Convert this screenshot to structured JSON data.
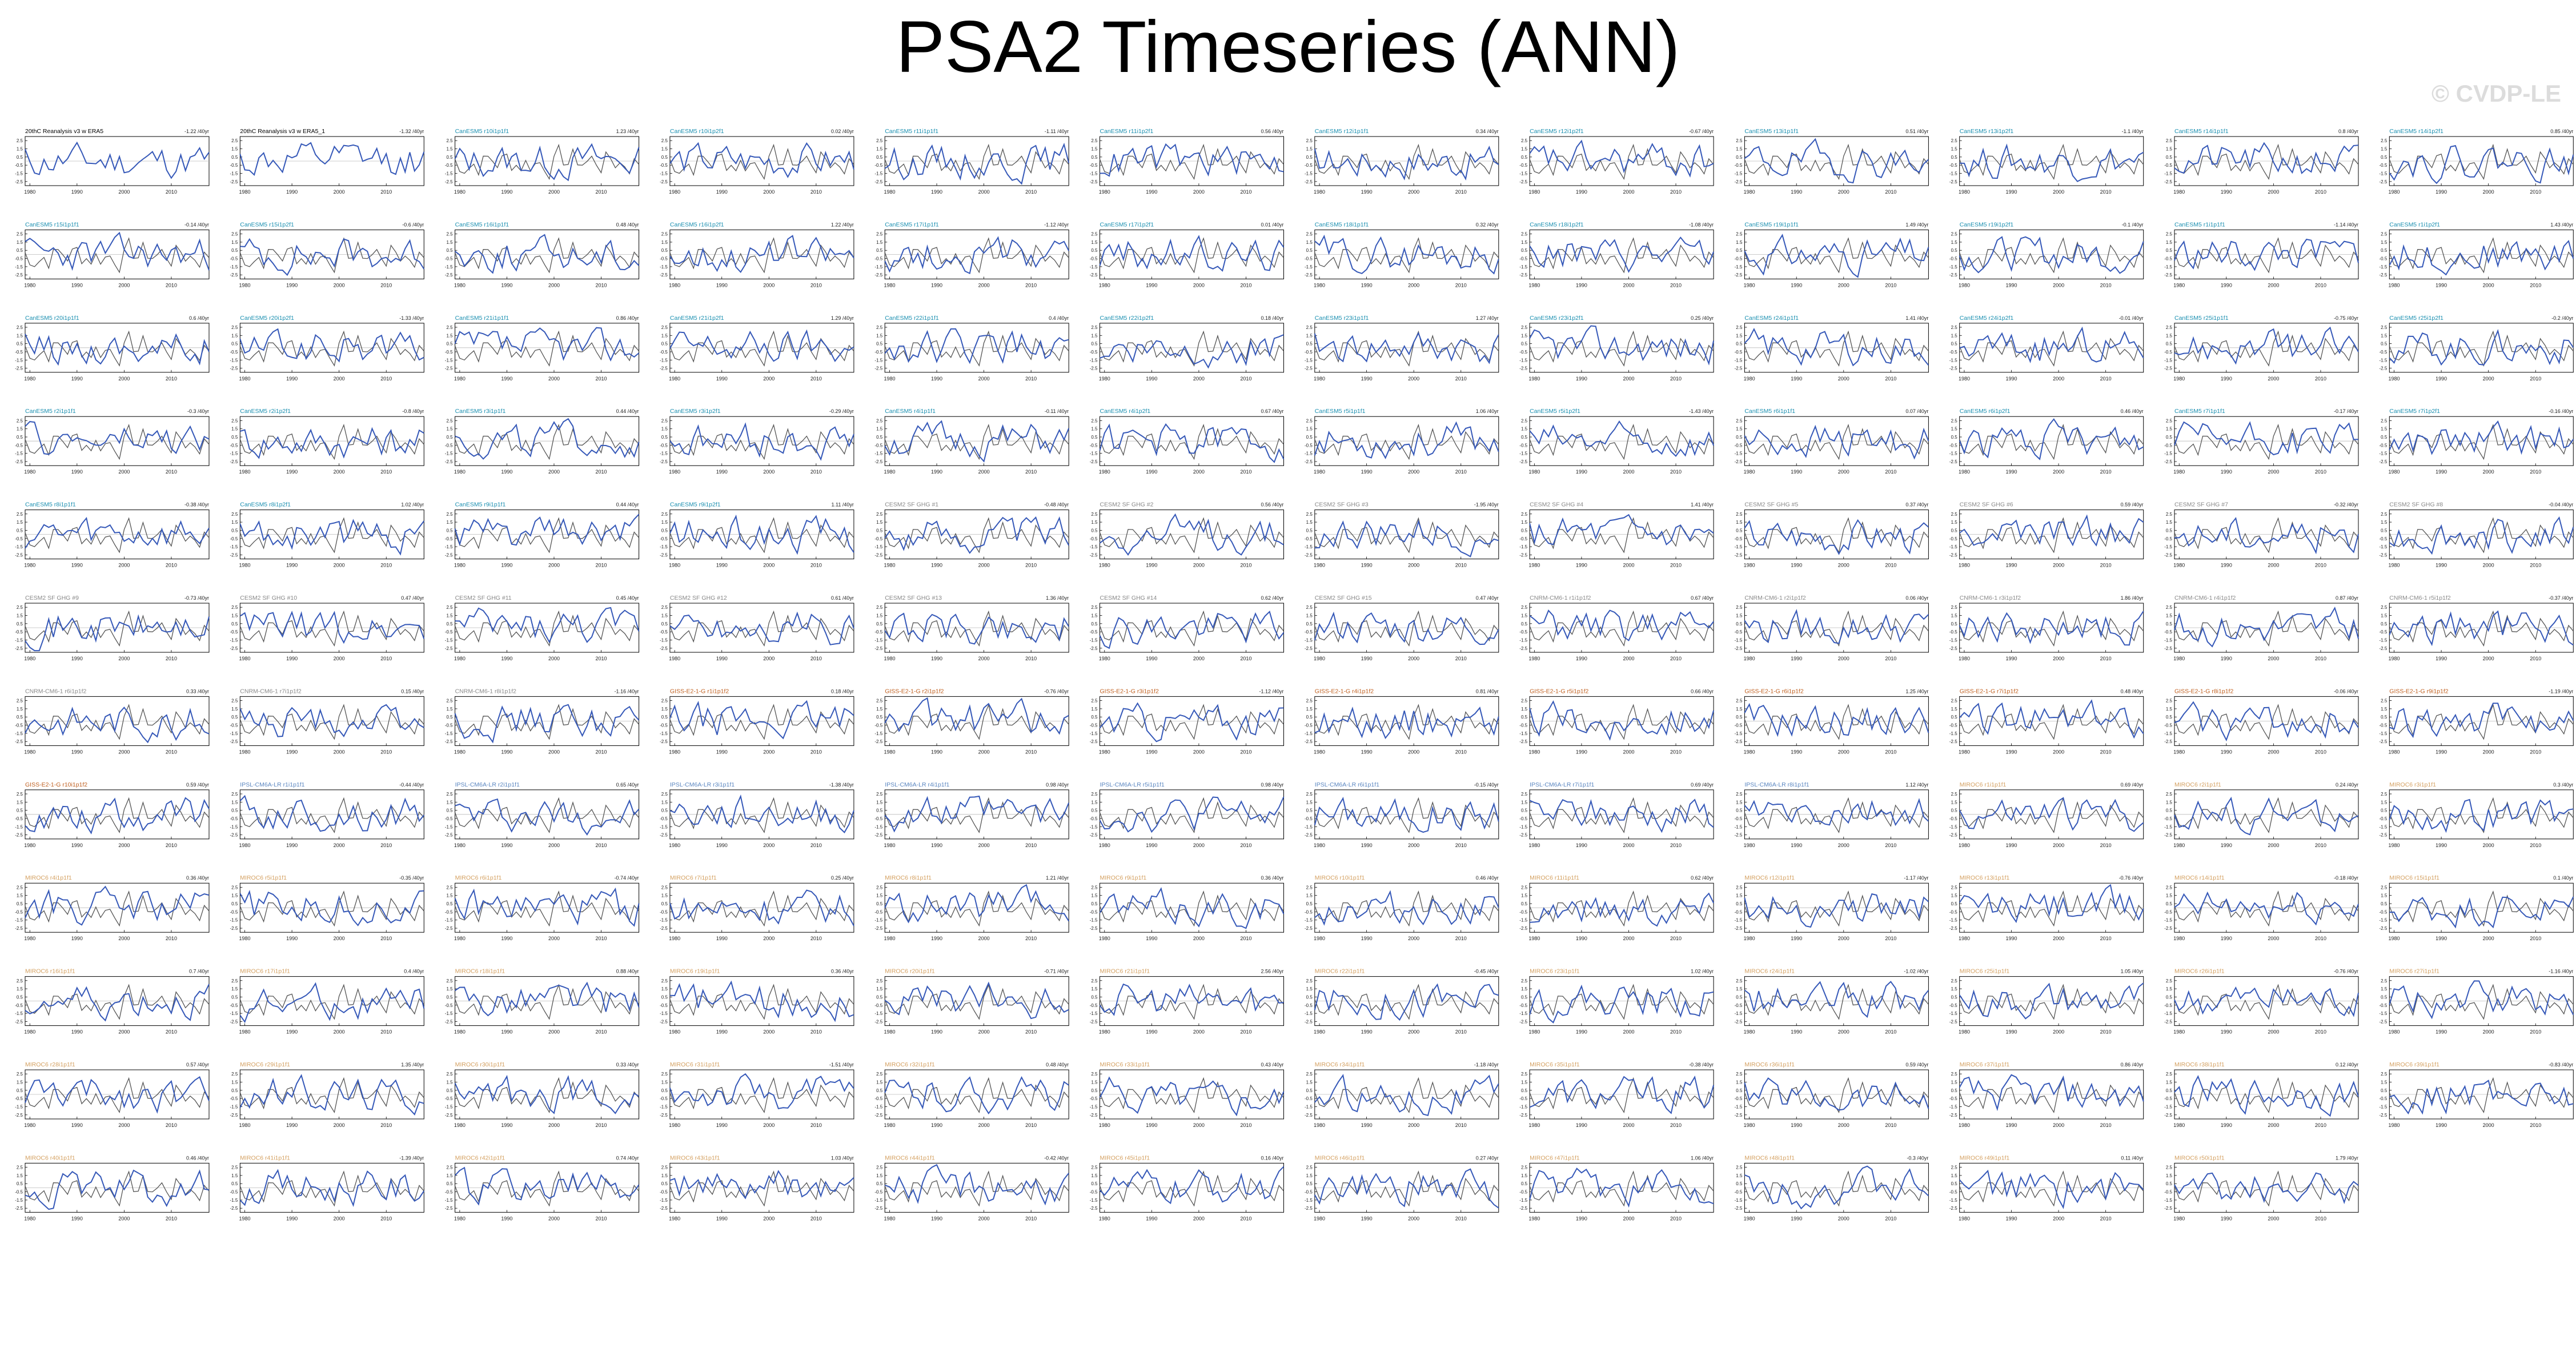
{
  "page": {
    "title": "PSA2 Timeseries (ANN)",
    "watermark": "© CVDP-LE"
  },
  "colors": {
    "model_line": "#3558b8",
    "obs_line": "#555555",
    "label_obs": "#000000",
    "label_cesm2": "#1a8fb0",
    "label_cesm_sf": "#888888",
    "label_cnrm": "#8a8a8a",
    "label_giss": "#c06020",
    "label_ipsl": "#5a86c0",
    "label_miroc": "#d4a060"
  },
  "chart_data": {
    "type": "line",
    "layout": "small-multiples",
    "x_ticks": [
      "1980",
      "1990",
      "2000",
      "2010"
    ],
    "y_ticks": [
      "2.5",
      "1.5",
      "0.5",
      "-0.5",
      "-1.5",
      "-2.5"
    ],
    "xlim": [
      1979,
      2018
    ],
    "ylim": [
      -3,
      3
    ],
    "panels": [
      {
        "label": "20thC Reanalysis v3 w ERA5",
        "trend": "-1.22 /40yr",
        "group": "obs"
      },
      {
        "label": "20thC Reanalysis v3 w ERA5_1",
        "trend": "-1.32 /40yr",
        "group": "obs"
      },
      {
        "label": "CanESM5 r10i1p1f1",
        "trend": "1.23 /40yr",
        "group": "cesm2"
      },
      {
        "label": "CanESM5 r10i1p2f1",
        "trend": "0.02 /40yr",
        "group": "cesm2"
      },
      {
        "label": "CanESM5 r11i1p1f1",
        "trend": "-1.11 /40yr",
        "group": "cesm2"
      },
      {
        "label": "CanESM5 r11i1p2f1",
        "trend": "0.56 /40yr",
        "group": "cesm2"
      },
      {
        "label": "CanESM5 r12i1p1f1",
        "trend": "0.34 /40yr",
        "group": "cesm2"
      },
      {
        "label": "CanESM5 r12i1p2f1",
        "trend": "-0.67 /40yr",
        "group": "cesm2"
      },
      {
        "label": "CanESM5 r13i1p1f1",
        "trend": "0.51 /40yr",
        "group": "cesm2"
      },
      {
        "label": "CanESM5 r13i1p2f1",
        "trend": "-1.1 /40yr",
        "group": "cesm2"
      },
      {
        "label": "CanESM5 r14i1p1f1",
        "trend": "0.8 /40yr",
        "group": "cesm2"
      },
      {
        "label": "CanESM5 r14i1p2f1",
        "trend": "0.85 /40yr",
        "group": "cesm2"
      },
      {
        "label": "CanESM5 r15i1p1f1",
        "trend": "-0.14 /40yr",
        "group": "cesm2"
      },
      {
        "label": "CanESM5 r15i1p2f1",
        "trend": "-0.6 /40yr",
        "group": "cesm2"
      },
      {
        "label": "CanESM5 r16i1p1f1",
        "trend": "0.48 /40yr",
        "group": "cesm2"
      },
      {
        "label": "CanESM5 r16i1p2f1",
        "trend": "1.22 /40yr",
        "group": "cesm2"
      },
      {
        "label": "CanESM5 r17i1p1f1",
        "trend": "-1.12 /40yr",
        "group": "cesm2"
      },
      {
        "label": "CanESM5 r17i1p2f1",
        "trend": "0.01 /40yr",
        "group": "cesm2"
      },
      {
        "label": "CanESM5 r18i1p1f1",
        "trend": "0.32 /40yr",
        "group": "cesm2"
      },
      {
        "label": "CanESM5 r18i1p2f1",
        "trend": "-1.08 /40yr",
        "group": "cesm2"
      },
      {
        "label": "CanESM5 r19i1p1f1",
        "trend": "1.49 /40yr",
        "group": "cesm2"
      },
      {
        "label": "CanESM5 r19i1p2f1",
        "trend": "-0.1 /40yr",
        "group": "cesm2"
      },
      {
        "label": "CanESM5 r1i1p1f1",
        "trend": "-1.14 /40yr",
        "group": "cesm2"
      },
      {
        "label": "CanESM5 r1i1p2f1",
        "trend": "1.43 /40yr",
        "group": "cesm2"
      },
      {
        "label": "CanESM5 r20i1p1f1",
        "trend": "0.6 /40yr",
        "group": "cesm2"
      },
      {
        "label": "CanESM5 r20i1p2f1",
        "trend": "-1.33 /40yr",
        "group": "cesm2"
      },
      {
        "label": "CanESM5 r21i1p1f1",
        "trend": "0.86 /40yr",
        "group": "cesm2"
      },
      {
        "label": "CanESM5 r21i1p2f1",
        "trend": "1.29 /40yr",
        "group": "cesm2"
      },
      {
        "label": "CanESM5 r22i1p1f1",
        "trend": "0.4 /40yr",
        "group": "cesm2"
      },
      {
        "label": "CanESM5 r22i1p2f1",
        "trend": "0.18 /40yr",
        "group": "cesm2"
      },
      {
        "label": "CanESM5 r23i1p1f1",
        "trend": "1.27 /40yr",
        "group": "cesm2"
      },
      {
        "label": "CanESM5 r23i1p2f1",
        "trend": "0.25 /40yr",
        "group": "cesm2"
      },
      {
        "label": "CanESM5 r24i1p1f1",
        "trend": "1.41 /40yr",
        "group": "cesm2"
      },
      {
        "label": "CanESM5 r24i1p2f1",
        "trend": "-0.01 /40yr",
        "group": "cesm2"
      },
      {
        "label": "CanESM5 r25i1p1f1",
        "trend": "-0.75 /40yr",
        "group": "cesm2"
      },
      {
        "label": "CanESM5 r25i1p2f1",
        "trend": "-0.2 /40yr",
        "group": "cesm2"
      },
      {
        "label": "CanESM5 r2i1p1f1",
        "trend": "-0.3 /40yr",
        "group": "cesm2"
      },
      {
        "label": "CanESM5 r2i1p2f1",
        "trend": "-0.8 /40yr",
        "group": "cesm2"
      },
      {
        "label": "CanESM5 r3i1p1f1",
        "trend": "0.44 /40yr",
        "group": "cesm2"
      },
      {
        "label": "CanESM5 r3i1p2f1",
        "trend": "-0.29 /40yr",
        "group": "cesm2"
      },
      {
        "label": "CanESM5 r4i1p1f1",
        "trend": "-0.11 /40yr",
        "group": "cesm2"
      },
      {
        "label": "CanESM5 r4i1p2f1",
        "trend": "0.67 /40yr",
        "group": "cesm2"
      },
      {
        "label": "CanESM5 r5i1p1f1",
        "trend": "1.06 /40yr",
        "group": "cesm2"
      },
      {
        "label": "CanESM5 r5i1p2f1",
        "trend": "-1.43 /40yr",
        "group": "cesm2"
      },
      {
        "label": "CanESM5 r6i1p1f1",
        "trend": "0.07 /40yr",
        "group": "cesm2"
      },
      {
        "label": "CanESM5 r6i1p2f1",
        "trend": "0.46 /40yr",
        "group": "cesm2"
      },
      {
        "label": "CanESM5 r7i1p1f1",
        "trend": "-0.17 /40yr",
        "group": "cesm2"
      },
      {
        "label": "CanESM5 r7i1p2f1",
        "trend": "-0.16 /40yr",
        "group": "cesm2"
      },
      {
        "label": "CanESM5 r8i1p1f1",
        "trend": "-0.38 /40yr",
        "group": "cesm2"
      },
      {
        "label": "CanESM5 r8i1p2f1",
        "trend": "1.02 /40yr",
        "group": "cesm2"
      },
      {
        "label": "CanESM5 r9i1p1f1",
        "trend": "0.44 /40yr",
        "group": "cesm2"
      },
      {
        "label": "CanESM5 r9i1p2f1",
        "trend": "1.11 /40yr",
        "group": "cesm2"
      },
      {
        "label": "CESM2 SF GHG #1",
        "trend": "-0.48 /40yr",
        "group": "cesm_sf"
      },
      {
        "label": "CESM2 SF GHG #2",
        "trend": "0.56 /40yr",
        "group": "cesm_sf"
      },
      {
        "label": "CESM2 SF GHG #3",
        "trend": "-1.95 /40yr",
        "group": "cesm_sf"
      },
      {
        "label": "CESM2 SF GHG #4",
        "trend": "1.41 /40yr",
        "group": "cesm_sf"
      },
      {
        "label": "CESM2 SF GHG #5",
        "trend": "0.37 /40yr",
        "group": "cesm_sf"
      },
      {
        "label": "CESM2 SF GHG #6",
        "trend": "0.59 /40yr",
        "group": "cesm_sf"
      },
      {
        "label": "CESM2 SF GHG #7",
        "trend": "-0.32 /40yr",
        "group": "cesm_sf"
      },
      {
        "label": "CESM2 SF GHG #8",
        "trend": "-0.04 /40yr",
        "group": "cesm_sf"
      },
      {
        "label": "CESM2 SF GHG #9",
        "trend": "-0.73 /40yr",
        "group": "cesm_sf"
      },
      {
        "label": "CESM2 SF GHG #10",
        "trend": "0.47 /40yr",
        "group": "cesm_sf"
      },
      {
        "label": "CESM2 SF GHG #11",
        "trend": "0.45 /40yr",
        "group": "cesm_sf"
      },
      {
        "label": "CESM2 SF GHG #12",
        "trend": "0.61 /40yr",
        "group": "cesm_sf"
      },
      {
        "label": "CESM2 SF GHG #13",
        "trend": "1.36 /40yr",
        "group": "cesm_sf"
      },
      {
        "label": "CESM2 SF GHG #14",
        "trend": "0.62 /40yr",
        "group": "cesm_sf"
      },
      {
        "label": "CESM2 SF GHG #15",
        "trend": "0.47 /40yr",
        "group": "cesm_sf"
      },
      {
        "label": "CNRM-CM6-1 r1i1p1f2",
        "trend": "0.67 /40yr",
        "group": "cnrm"
      },
      {
        "label": "CNRM-CM6-1 r2i1p1f2",
        "trend": "0.06 /40yr",
        "group": "cnrm"
      },
      {
        "label": "CNRM-CM6-1 r3i1p1f2",
        "trend": "1.86 /40yr",
        "group": "cnrm"
      },
      {
        "label": "CNRM-CM6-1 r4i1p1f2",
        "trend": "0.87 /40yr",
        "group": "cnrm"
      },
      {
        "label": "CNRM-CM6-1 r5i1p1f2",
        "trend": "-0.37 /40yr",
        "group": "cnrm"
      },
      {
        "label": "CNRM-CM6-1 r6i1p1f2",
        "trend": "0.33 /40yr",
        "group": "cnrm"
      },
      {
        "label": "CNRM-CM6-1 r7i1p1f2",
        "trend": "0.15 /40yr",
        "group": "cnrm"
      },
      {
        "label": "CNRM-CM6-1 r8i1p1f2",
        "trend": "-1.16 /40yr",
        "group": "cnrm"
      },
      {
        "label": "GISS-E2-1-G r1i1p1f2",
        "trend": "0.18 /40yr",
        "group": "giss"
      },
      {
        "label": "GISS-E2-1-G r2i1p1f2",
        "trend": "-0.76 /40yr",
        "group": "giss"
      },
      {
        "label": "GISS-E2-1-G r3i1p1f2",
        "trend": "-1.12 /40yr",
        "group": "giss"
      },
      {
        "label": "GISS-E2-1-G r4i1p1f2",
        "trend": "0.81 /40yr",
        "group": "giss"
      },
      {
        "label": "GISS-E2-1-G r5i1p1f2",
        "trend": "0.66 /40yr",
        "group": "giss"
      },
      {
        "label": "GISS-E2-1-G r6i1p1f2",
        "trend": "1.25 /40yr",
        "group": "giss"
      },
      {
        "label": "GISS-E2-1-G r7i1p1f2",
        "trend": "0.48 /40yr",
        "group": "giss"
      },
      {
        "label": "GISS-E2-1-G r8i1p1f2",
        "trend": "-0.06 /40yr",
        "group": "giss"
      },
      {
        "label": "GISS-E2-1-G r9i1p1f2",
        "trend": "-1.19 /40yr",
        "group": "giss"
      },
      {
        "label": "GISS-E2-1-G r10i1p1f2",
        "trend": "0.59 /40yr",
        "group": "giss"
      },
      {
        "label": "IPSL-CM6A-LR r1i1p1f1",
        "trend": "-0.44 /40yr",
        "group": "ipsl"
      },
      {
        "label": "IPSL-CM6A-LR r2i1p1f1",
        "trend": "0.65 /40yr",
        "group": "ipsl"
      },
      {
        "label": "IPSL-CM6A-LR r3i1p1f1",
        "trend": "-1.38 /40yr",
        "group": "ipsl"
      },
      {
        "label": "IPSL-CM6A-LR r4i1p1f1",
        "trend": "0.98 /40yr",
        "group": "ipsl"
      },
      {
        "label": "IPSL-CM6A-LR r5i1p1f1",
        "trend": "0.98 /40yr",
        "group": "ipsl"
      },
      {
        "label": "IPSL-CM6A-LR r6i1p1f1",
        "trend": "-0.15 /40yr",
        "group": "ipsl"
      },
      {
        "label": "IPSL-CM6A-LR r7i1p1f1",
        "trend": "0.69 /40yr",
        "group": "ipsl"
      },
      {
        "label": "IPSL-CM6A-LR r8i1p1f1",
        "trend": "1.12 /40yr",
        "group": "ipsl"
      },
      {
        "label": "MIROC6 r1i1p1f1",
        "trend": "0.69 /40yr",
        "group": "miroc"
      },
      {
        "label": "MIROC6 r2i1p1f1",
        "trend": "0.24 /40yr",
        "group": "miroc"
      },
      {
        "label": "MIROC6 r3i1p1f1",
        "trend": "0.3 /40yr",
        "group": "miroc"
      },
      {
        "label": "MIROC6 r4i1p1f1",
        "trend": "0.36 /40yr",
        "group": "miroc"
      },
      {
        "label": "MIROC6 r5i1p1f1",
        "trend": "-0.35 /40yr",
        "group": "miroc"
      },
      {
        "label": "MIROC6 r6i1p1f1",
        "trend": "-0.74 /40yr",
        "group": "miroc"
      },
      {
        "label": "MIROC6 r7i1p1f1",
        "trend": "0.25 /40yr",
        "group": "miroc"
      },
      {
        "label": "MIROC6 r8i1p1f1",
        "trend": "1.21 /40yr",
        "group": "miroc"
      },
      {
        "label": "MIROC6 r9i1p1f1",
        "trend": "0.36 /40yr",
        "group": "miroc"
      },
      {
        "label": "MIROC6 r10i1p1f1",
        "trend": "0.46 /40yr",
        "group": "miroc"
      },
      {
        "label": "MIROC6 r11i1p1f1",
        "trend": "0.62 /40yr",
        "group": "miroc"
      },
      {
        "label": "MIROC6 r12i1p1f1",
        "trend": "-1.17 /40yr",
        "group": "miroc"
      },
      {
        "label": "MIROC6 r13i1p1f1",
        "trend": "-0.76 /40yr",
        "group": "miroc"
      },
      {
        "label": "MIROC6 r14i1p1f1",
        "trend": "-0.18 /40yr",
        "group": "miroc"
      },
      {
        "label": "MIROC6 r15i1p1f1",
        "trend": "0.1 /40yr",
        "group": "miroc"
      },
      {
        "label": "MIROC6 r16i1p1f1",
        "trend": "0.7 /40yr",
        "group": "miroc"
      },
      {
        "label": "MIROC6 r17i1p1f1",
        "trend": "0.4 /40yr",
        "group": "miroc"
      },
      {
        "label": "MIROC6 r18i1p1f1",
        "trend": "0.88 /40yr",
        "group": "miroc"
      },
      {
        "label": "MIROC6 r19i1p1f1",
        "trend": "0.36 /40yr",
        "group": "miroc"
      },
      {
        "label": "MIROC6 r20i1p1f1",
        "trend": "-0.71 /40yr",
        "group": "miroc"
      },
      {
        "label": "MIROC6 r21i1p1f1",
        "trend": "2.56 /40yr",
        "group": "miroc"
      },
      {
        "label": "MIROC6 r22i1p1f1",
        "trend": "-0.45 /40yr",
        "group": "miroc"
      },
      {
        "label": "MIROC6 r23i1p1f1",
        "trend": "1.02 /40yr",
        "group": "miroc"
      },
      {
        "label": "MIROC6 r24i1p1f1",
        "trend": "-1.02 /40yr",
        "group": "miroc"
      },
      {
        "label": "MIROC6 r25i1p1f1",
        "trend": "1.05 /40yr",
        "group": "miroc"
      },
      {
        "label": "MIROC6 r26i1p1f1",
        "trend": "-0.76 /40yr",
        "group": "miroc"
      },
      {
        "label": "MIROC6 r27i1p1f1",
        "trend": "-1.16 /40yr",
        "group": "miroc"
      },
      {
        "label": "MIROC6 r28i1p1f1",
        "trend": "0.57 /40yr",
        "group": "miroc"
      },
      {
        "label": "MIROC6 r29i1p1f1",
        "trend": "1.35 /40yr",
        "group": "miroc"
      },
      {
        "label": "MIROC6 r30i1p1f1",
        "trend": "0.33 /40yr",
        "group": "miroc"
      },
      {
        "label": "MIROC6 r31i1p1f1",
        "trend": "-1.51 /40yr",
        "group": "miroc"
      },
      {
        "label": "MIROC6 r32i1p1f1",
        "trend": "0.48 /40yr",
        "group": "miroc"
      },
      {
        "label": "MIROC6 r33i1p1f1",
        "trend": "0.43 /40yr",
        "group": "miroc"
      },
      {
        "label": "MIROC6 r34i1p1f1",
        "trend": "-1.18 /40yr",
        "group": "miroc"
      },
      {
        "label": "MIROC6 r35i1p1f1",
        "trend": "-0.38 /40yr",
        "group": "miroc"
      },
      {
        "label": "MIROC6 r36i1p1f1",
        "trend": "0.59 /40yr",
        "group": "miroc"
      },
      {
        "label": "MIROC6 r37i1p1f1",
        "trend": "0.86 /40yr",
        "group": "miroc"
      },
      {
        "label": "MIROC6 r38i1p1f1",
        "trend": "0.12 /40yr",
        "group": "miroc"
      },
      {
        "label": "MIROC6 r39i1p1f1",
        "trend": "-0.83 /40yr",
        "group": "miroc"
      },
      {
        "label": "MIROC6 r40i1p1f1",
        "trend": "0.46 /40yr",
        "group": "miroc"
      },
      {
        "label": "MIROC6 r41i1p1f1",
        "trend": "-1.39 /40yr",
        "group": "miroc"
      },
      {
        "label": "MIROC6 r42i1p1f1",
        "trend": "0.74 /40yr",
        "group": "miroc"
      },
      {
        "label": "MIROC6 r43i1p1f1",
        "trend": "1.03 /40yr",
        "group": "miroc"
      },
      {
        "label": "MIROC6 r44i1p1f1",
        "trend": "-0.42 /40yr",
        "group": "miroc"
      },
      {
        "label": "MIROC6 r45i1p1f1",
        "trend": "0.16 /40yr",
        "group": "miroc"
      },
      {
        "label": "MIROC6 r46i1p1f1",
        "trend": "0.27 /40yr",
        "group": "miroc"
      },
      {
        "label": "MIROC6 r47i1p1f1",
        "trend": "1.06 /40yr",
        "group": "miroc"
      },
      {
        "label": "MIROC6 r48i1p1f1",
        "trend": "-0.3 /40yr",
        "group": "miroc"
      },
      {
        "label": "MIROC6 r49i1p1f1",
        "trend": "0.11 /40yr",
        "group": "miroc"
      },
      {
        "label": "MIROC6 r50i1p1f1",
        "trend": "1.79 /40yr",
        "group": "miroc"
      }
    ]
  }
}
